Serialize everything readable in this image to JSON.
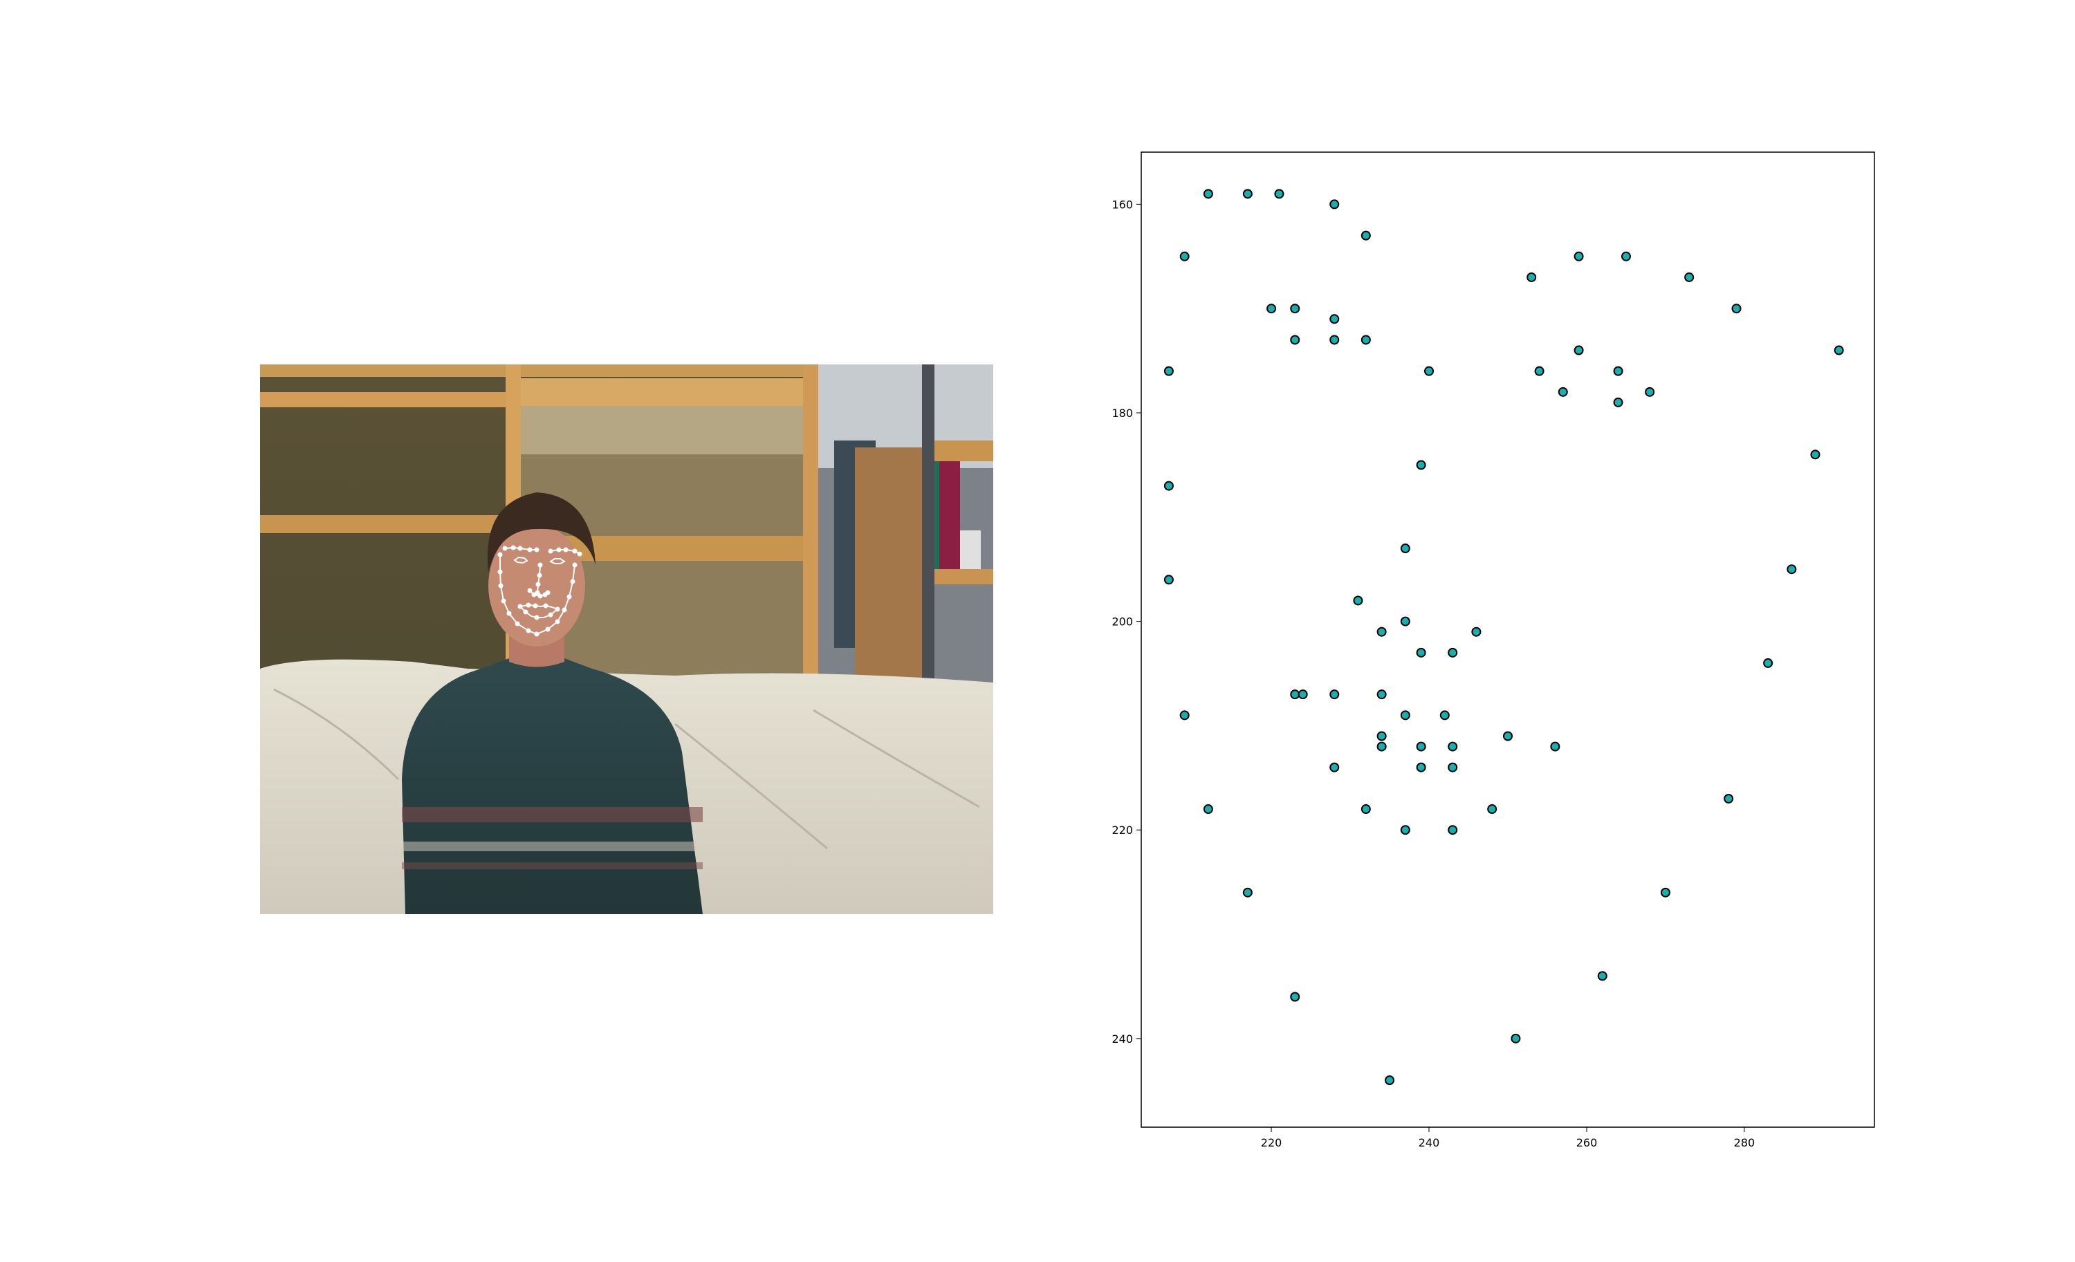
{
  "photo": {
    "description_icon": "face-landmark-photo",
    "landmark_color": "#ffffff"
  },
  "colors": {
    "point_fill": "#17b0b0",
    "point_edge": "#000000",
    "axes": "#000000"
  },
  "chart_data": {
    "type": "scatter",
    "xlim": [
      203.5,
      296.5
    ],
    "ylim": [
      248.5,
      155
    ],
    "y_inverted": true,
    "grid": false,
    "xticks": [
      220,
      240,
      260,
      280
    ],
    "yticks": [
      160,
      180,
      200,
      220,
      240
    ],
    "title": "",
    "xlabel": "",
    "ylabel": "",
    "points": [
      [
        207,
        176
      ],
      [
        207,
        187
      ],
      [
        207,
        196
      ],
      [
        209,
        209
      ],
      [
        212,
        218
      ],
      [
        217,
        226
      ],
      [
        223,
        236
      ],
      [
        235,
        244
      ],
      [
        251,
        240
      ],
      [
        262,
        234
      ],
      [
        270,
        226
      ],
      [
        278,
        217
      ],
      [
        283,
        204
      ],
      [
        286,
        195
      ],
      [
        289,
        184
      ],
      [
        292,
        174
      ],
      [
        212,
        159
      ],
      [
        217,
        159
      ],
      [
        221,
        159
      ],
      [
        209,
        165
      ],
      [
        228,
        160
      ],
      [
        232,
        163
      ],
      [
        253,
        167
      ],
      [
        259,
        165
      ],
      [
        265,
        165
      ],
      [
        273,
        167
      ],
      [
        279,
        170
      ],
      [
        240,
        176
      ],
      [
        239,
        185
      ],
      [
        237,
        193
      ],
      [
        237,
        200
      ],
      [
        231,
        198
      ],
      [
        234,
        201
      ],
      [
        239,
        203
      ],
      [
        243,
        203
      ],
      [
        246,
        201
      ],
      [
        220,
        170
      ],
      [
        223,
        170
      ],
      [
        228,
        171
      ],
      [
        232,
        173
      ],
      [
        228,
        173
      ],
      [
        223,
        173
      ],
      [
        254,
        176
      ],
      [
        259,
        174
      ],
      [
        264,
        176
      ],
      [
        268,
        178
      ],
      [
        264,
        179
      ],
      [
        257,
        178
      ],
      [
        223,
        207
      ],
      [
        228,
        207
      ],
      [
        234,
        207
      ],
      [
        237,
        209
      ],
      [
        242,
        209
      ],
      [
        250,
        211
      ],
      [
        256,
        212
      ],
      [
        248,
        218
      ],
      [
        243,
        220
      ],
      [
        237,
        220
      ],
      [
        232,
        218
      ],
      [
        228,
        214
      ],
      [
        224,
        207
      ],
      [
        234,
        211
      ],
      [
        239,
        212
      ],
      [
        243,
        212
      ],
      [
        243,
        214
      ],
      [
        239,
        214
      ],
      [
        234,
        212
      ]
    ]
  }
}
